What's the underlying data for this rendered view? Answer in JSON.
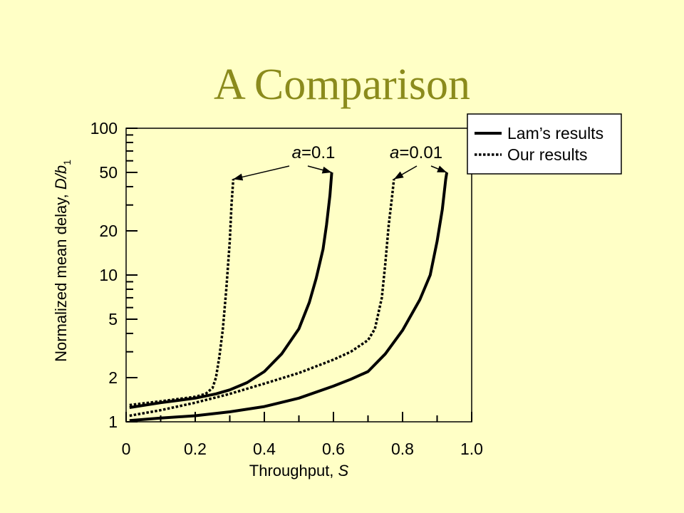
{
  "slide": {
    "title": "A Comparison"
  },
  "chart_data": {
    "type": "line",
    "title": "",
    "xlabel": "Throughput, S",
    "xlabel_text": "Throughput,",
    "xlabel_symbol": "S",
    "ylabel": "Normalized mean delay, D/b1",
    "ylabel_text": "Normalized mean delay,",
    "ylabel_symbol": "D/b",
    "ylabel_subscript": "1",
    "xlim": [
      0,
      1.0
    ],
    "ylim": [
      1,
      100
    ],
    "y_scale": "log",
    "x_ticks": [
      "0",
      "0.2",
      "0.4",
      "0.6",
      "0.8",
      "1.0"
    ],
    "y_ticks": [
      "1",
      "2",
      "5",
      "10",
      "20",
      "50",
      "100"
    ],
    "legend": {
      "position": "top-right",
      "entries": [
        {
          "label": "Lam’s results",
          "style": "solid"
        },
        {
          "label": "Our results",
          "style": "dotted"
        }
      ]
    },
    "annotations": [
      {
        "symbol": "a",
        "value": "=0.1"
      },
      {
        "symbol": "a",
        "value": "=0.01"
      }
    ],
    "series": [
      {
        "name": "Lam’s results",
        "group": "a=0.1",
        "style": "solid",
        "points": [
          [
            0.01,
            1.25
          ],
          [
            0.1,
            1.35
          ],
          [
            0.2,
            1.45
          ],
          [
            0.26,
            1.55
          ],
          [
            0.3,
            1.65
          ],
          [
            0.35,
            1.85
          ],
          [
            0.4,
            2.2
          ],
          [
            0.45,
            2.9
          ],
          [
            0.5,
            4.3
          ],
          [
            0.53,
            6.5
          ],
          [
            0.55,
            9.5
          ],
          [
            0.57,
            15
          ],
          [
            0.58,
            22
          ],
          [
            0.59,
            35
          ],
          [
            0.595,
            50
          ]
        ]
      },
      {
        "name": "Our results",
        "group": "a=0.1",
        "style": "dotted",
        "points": [
          [
            0.01,
            1.3
          ],
          [
            0.1,
            1.38
          ],
          [
            0.2,
            1.48
          ],
          [
            0.23,
            1.55
          ],
          [
            0.25,
            1.7
          ],
          [
            0.26,
            2
          ],
          [
            0.27,
            2.8
          ],
          [
            0.28,
            4.3
          ],
          [
            0.29,
            8
          ],
          [
            0.3,
            17
          ],
          [
            0.305,
            30
          ],
          [
            0.31,
            45
          ]
        ]
      },
      {
        "name": "Lam’s results",
        "group": "a=0.01",
        "style": "solid",
        "points": [
          [
            0.01,
            1.02
          ],
          [
            0.1,
            1.06
          ],
          [
            0.2,
            1.1
          ],
          [
            0.3,
            1.17
          ],
          [
            0.4,
            1.27
          ],
          [
            0.5,
            1.45
          ],
          [
            0.6,
            1.75
          ],
          [
            0.65,
            1.95
          ],
          [
            0.7,
            2.2
          ],
          [
            0.75,
            2.9
          ],
          [
            0.8,
            4.2
          ],
          [
            0.85,
            6.8
          ],
          [
            0.88,
            10
          ],
          [
            0.9,
            17
          ],
          [
            0.915,
            28
          ],
          [
            0.925,
            45
          ],
          [
            0.928,
            50
          ]
        ]
      },
      {
        "name": "Our results",
        "group": "a=0.01",
        "style": "dotted",
        "points": [
          [
            0.01,
            1.1
          ],
          [
            0.1,
            1.2
          ],
          [
            0.2,
            1.35
          ],
          [
            0.3,
            1.55
          ],
          [
            0.4,
            1.82
          ],
          [
            0.5,
            2.15
          ],
          [
            0.6,
            2.65
          ],
          [
            0.65,
            3.0
          ],
          [
            0.7,
            3.6
          ],
          [
            0.72,
            4.3
          ],
          [
            0.74,
            7
          ],
          [
            0.75,
            12
          ],
          [
            0.76,
            22
          ],
          [
            0.77,
            35
          ],
          [
            0.775,
            45
          ]
        ]
      }
    ]
  }
}
